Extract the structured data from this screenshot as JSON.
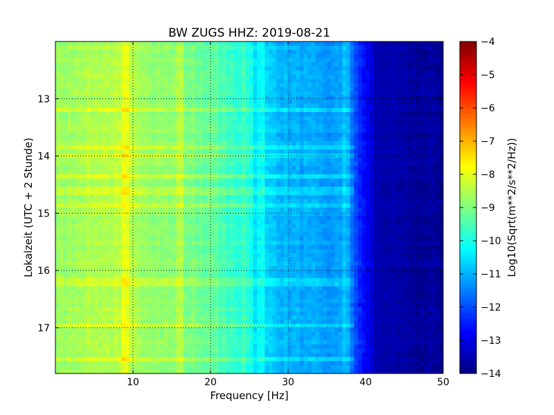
{
  "chart_data": {
    "type": "heatmap",
    "title": "BW ZUGS HHZ: 2019-08-21",
    "xlabel": "Frequency [Hz]",
    "ylabel": "Lokalzeit (UTC + 2 Stunde)",
    "xlim": [
      0,
      50
    ],
    "ylim": [
      12.0,
      17.8
    ],
    "y_axis_inverted": true,
    "x_ticks": [
      10,
      20,
      30,
      40,
      50
    ],
    "y_ticks": [
      13,
      14,
      15,
      16,
      17
    ],
    "grid": true,
    "colorbar": {
      "label": "Log10(Sqrt(m**2/s**2/Hz))",
      "range": [
        -14,
        -4
      ],
      "ticks": [
        -4,
        -5,
        -6,
        -7,
        -8,
        -9,
        -10,
        -11,
        -12,
        -13,
        -14
      ],
      "colormap": "jet"
    },
    "mean_spectrum": {
      "frequency_hz": [
        0,
        3,
        6,
        9,
        12,
        15,
        18,
        21,
        22,
        23,
        24,
        25,
        26,
        28,
        30,
        32,
        34,
        36,
        37,
        38,
        39,
        40,
        41,
        42,
        45,
        50
      ],
      "log10_amplitude": [
        -8.8,
        -8.6,
        -8.5,
        -8.5,
        -8.7,
        -8.9,
        -9.1,
        -9.4,
        -9.6,
        -9.8,
        -9.9,
        -10.4,
        -10.6,
        -10.8,
        -11.0,
        -11.1,
        -11.2,
        -11.3,
        -11.1,
        -11.6,
        -12.2,
        -12.8,
        -13.2,
        -13.5,
        -13.7,
        -13.8
      ]
    },
    "persistent_lines_hz": [
      9,
      16,
      24.4,
      25.0,
      26.5,
      37.4,
      37.7
    ],
    "transient_rows_hours": [
      13.2,
      13.85,
      14.0,
      14.35,
      14.6,
      14.85,
      16.2,
      16.95,
      17.55
    ]
  }
}
